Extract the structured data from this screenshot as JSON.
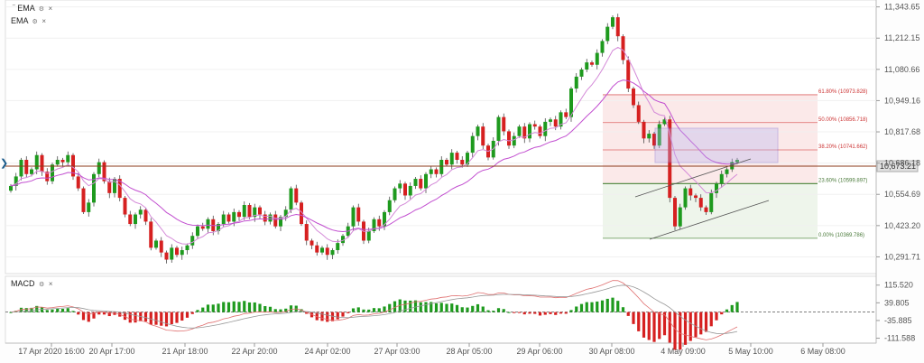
{
  "indicators": {
    "ema1": {
      "label": "EMA",
      "settings_icon": "gear-icon",
      "close": "×",
      "collapse_icon": "collapse-icon"
    },
    "ema2": {
      "label": "EMA",
      "settings_icon": "gear-icon",
      "close": "×"
    },
    "macd": {
      "label": "MACD",
      "settings_icon": "gear-icon",
      "close": "×"
    }
  },
  "nav": {
    "left_arrow": "❯"
  },
  "colors": {
    "up": "#1e9a1e",
    "down": "#d62020",
    "ema_fast": "#d48ad8",
    "ema_slow": "#c24fd0",
    "fib_top_zone": "#f9dada",
    "fib_bottom_zone": "#e7f1e3",
    "rect": "#6a5acd",
    "hline": "#8b3a1a",
    "price_tag": "#e0e0e0"
  },
  "chart_data": {
    "type": "candlestick",
    "y_ticks": [
      "11,343.65",
      "11,212.15",
      "11,080.66",
      "10,949.16",
      "10,817.68",
      "10,686.18",
      "10,554.69",
      "10,423.20",
      "10,291.71"
    ],
    "y_tick_values": [
      11343.65,
      11212.15,
      11080.66,
      10949.16,
      10817.68,
      10686.18,
      10554.69,
      10423.2,
      10291.71
    ],
    "ylim": [
      10225,
      11365
    ],
    "x_ticks": [
      "17 Apr 2020 16:00",
      "20 Apr 17:00",
      "21 Apr 18:00",
      "22 Apr 20:00",
      "24 Apr 02:00",
      "27 Apr 03:00",
      "28 Apr 05:00",
      "29 Apr 06:00",
      "30 Apr 08:00",
      "4 May 09:00",
      "5 May 10:00",
      "6 May 08:00"
    ],
    "current_price": "10,673.21",
    "current_price_value": 10673.21,
    "fibonacci": [
      {
        "label": "61.80% (10973.828)",
        "value": 10973.828
      },
      {
        "label": "50.00% (10856.718)",
        "value": 10856.718
      },
      {
        "label": "38.20% (10741.662)",
        "value": 10741.662
      },
      {
        "label": "23.60% (10599.897)",
        "value": 10599.897
      },
      {
        "label": "0.00% (10369.786)",
        "value": 10369.786
      }
    ],
    "close": [
      10590,
      10630,
      10700,
      10640,
      10660,
      10720,
      10650,
      10610,
      10680,
      10700,
      10690,
      10720,
      10630,
      10580,
      10480,
      10520,
      10640,
      10690,
      10610,
      10560,
      10620,
      10540,
      10470,
      10430,
      10470,
      10490,
      10440,
      10330,
      10360,
      10310,
      10280,
      10330,
      10300,
      10320,
      10340,
      10380,
      10420,
      10410,
      10450,
      10400,
      10430,
      10470,
      10440,
      10480,
      10460,
      10510,
      10460,
      10500,
      10470,
      10440,
      10470,
      10420,
      10460,
      10490,
      10580,
      10520,
      10430,
      10360,
      10340,
      10310,
      10330,
      10300,
      10320,
      10350,
      10380,
      10420,
      10500,
      10440,
      10360,
      10400,
      10450,
      10420,
      10480,
      10530,
      10580,
      10600,
      10550,
      10590,
      10620,
      10580,
      10640,
      10660,
      10640,
      10700,
      10680,
      10730,
      10700,
      10680,
      10730,
      10800,
      10840,
      10760,
      10710,
      10780,
      10880,
      10820,
      10760,
      10800,
      10840,
      10790,
      10850,
      10840,
      10800,
      10860,
      10870,
      10840,
      10900,
      10880,
      11000,
      11050,
      11080,
      11110,
      11100,
      11150,
      11200,
      11260,
      11300,
      11220,
      11120,
      11000,
      10930,
      10860,
      10790,
      10810,
      10760,
      10850,
      10870,
      10540,
      10420,
      10500,
      10580,
      10550,
      10540,
      10500,
      10480,
      10560,
      10600,
      10640,
      10660,
      10690,
      10700
    ]
  },
  "macd_chart": {
    "type": "histogram",
    "y_ticks": [
      "115.520",
      "39.805",
      "-35.885",
      "-111.588"
    ],
    "y_tick_values": [
      115.52,
      39.805,
      -35.885,
      -111.588
    ]
  }
}
